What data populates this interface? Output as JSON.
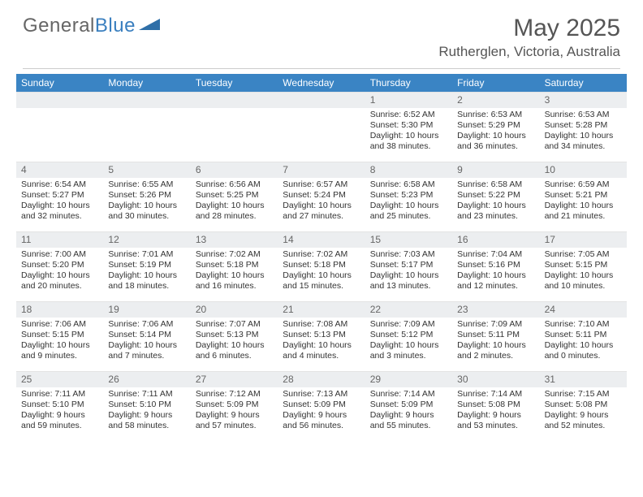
{
  "colors": {
    "header_bg": "#3a84c4",
    "header_text": "#ffffff",
    "daynum_bg": "#eceef0",
    "daynum_text": "#666666",
    "body_text": "#333333",
    "page_bg": "#ffffff",
    "rule": "#cccccc",
    "logo_gray": "#666666",
    "logo_blue": "#3a7fbf",
    "triangle": "#2f6fa8"
  },
  "typography": {
    "month_fontsize": 30,
    "location_fontsize": 17,
    "dayhdr_fontsize": 12,
    "cell_fontsize": 10.5,
    "logo_fontsize": 24
  },
  "logo": {
    "part1": "General",
    "part2": "Blue"
  },
  "title": {
    "month": "May 2025",
    "location": "Rutherglen, Victoria, Australia"
  },
  "day_headers": [
    "Sunday",
    "Monday",
    "Tuesday",
    "Wednesday",
    "Thursday",
    "Friday",
    "Saturday"
  ],
  "labels": {
    "sunrise": "Sunrise:",
    "sunset": "Sunset:",
    "daylight": "Daylight:"
  },
  "grid": {
    "leading_blanks": 4,
    "days": [
      {
        "n": 1,
        "sunrise": "6:52 AM",
        "sunset": "5:30 PM",
        "daylight": "10 hours and 38 minutes."
      },
      {
        "n": 2,
        "sunrise": "6:53 AM",
        "sunset": "5:29 PM",
        "daylight": "10 hours and 36 minutes."
      },
      {
        "n": 3,
        "sunrise": "6:53 AM",
        "sunset": "5:28 PM",
        "daylight": "10 hours and 34 minutes."
      },
      {
        "n": 4,
        "sunrise": "6:54 AM",
        "sunset": "5:27 PM",
        "daylight": "10 hours and 32 minutes."
      },
      {
        "n": 5,
        "sunrise": "6:55 AM",
        "sunset": "5:26 PM",
        "daylight": "10 hours and 30 minutes."
      },
      {
        "n": 6,
        "sunrise": "6:56 AM",
        "sunset": "5:25 PM",
        "daylight": "10 hours and 28 minutes."
      },
      {
        "n": 7,
        "sunrise": "6:57 AM",
        "sunset": "5:24 PM",
        "daylight": "10 hours and 27 minutes."
      },
      {
        "n": 8,
        "sunrise": "6:58 AM",
        "sunset": "5:23 PM",
        "daylight": "10 hours and 25 minutes."
      },
      {
        "n": 9,
        "sunrise": "6:58 AM",
        "sunset": "5:22 PM",
        "daylight": "10 hours and 23 minutes."
      },
      {
        "n": 10,
        "sunrise": "6:59 AM",
        "sunset": "5:21 PM",
        "daylight": "10 hours and 21 minutes."
      },
      {
        "n": 11,
        "sunrise": "7:00 AM",
        "sunset": "5:20 PM",
        "daylight": "10 hours and 20 minutes."
      },
      {
        "n": 12,
        "sunrise": "7:01 AM",
        "sunset": "5:19 PM",
        "daylight": "10 hours and 18 minutes."
      },
      {
        "n": 13,
        "sunrise": "7:02 AM",
        "sunset": "5:18 PM",
        "daylight": "10 hours and 16 minutes."
      },
      {
        "n": 14,
        "sunrise": "7:02 AM",
        "sunset": "5:18 PM",
        "daylight": "10 hours and 15 minutes."
      },
      {
        "n": 15,
        "sunrise": "7:03 AM",
        "sunset": "5:17 PM",
        "daylight": "10 hours and 13 minutes."
      },
      {
        "n": 16,
        "sunrise": "7:04 AM",
        "sunset": "5:16 PM",
        "daylight": "10 hours and 12 minutes."
      },
      {
        "n": 17,
        "sunrise": "7:05 AM",
        "sunset": "5:15 PM",
        "daylight": "10 hours and 10 minutes."
      },
      {
        "n": 18,
        "sunrise": "7:06 AM",
        "sunset": "5:15 PM",
        "daylight": "10 hours and 9 minutes."
      },
      {
        "n": 19,
        "sunrise": "7:06 AM",
        "sunset": "5:14 PM",
        "daylight": "10 hours and 7 minutes."
      },
      {
        "n": 20,
        "sunrise": "7:07 AM",
        "sunset": "5:13 PM",
        "daylight": "10 hours and 6 minutes."
      },
      {
        "n": 21,
        "sunrise": "7:08 AM",
        "sunset": "5:13 PM",
        "daylight": "10 hours and 4 minutes."
      },
      {
        "n": 22,
        "sunrise": "7:09 AM",
        "sunset": "5:12 PM",
        "daylight": "10 hours and 3 minutes."
      },
      {
        "n": 23,
        "sunrise": "7:09 AM",
        "sunset": "5:11 PM",
        "daylight": "10 hours and 2 minutes."
      },
      {
        "n": 24,
        "sunrise": "7:10 AM",
        "sunset": "5:11 PM",
        "daylight": "10 hours and 0 minutes."
      },
      {
        "n": 25,
        "sunrise": "7:11 AM",
        "sunset": "5:10 PM",
        "daylight": "9 hours and 59 minutes."
      },
      {
        "n": 26,
        "sunrise": "7:11 AM",
        "sunset": "5:10 PM",
        "daylight": "9 hours and 58 minutes."
      },
      {
        "n": 27,
        "sunrise": "7:12 AM",
        "sunset": "5:09 PM",
        "daylight": "9 hours and 57 minutes."
      },
      {
        "n": 28,
        "sunrise": "7:13 AM",
        "sunset": "5:09 PM",
        "daylight": "9 hours and 56 minutes."
      },
      {
        "n": 29,
        "sunrise": "7:14 AM",
        "sunset": "5:09 PM",
        "daylight": "9 hours and 55 minutes."
      },
      {
        "n": 30,
        "sunrise": "7:14 AM",
        "sunset": "5:08 PM",
        "daylight": "9 hours and 53 minutes."
      },
      {
        "n": 31,
        "sunrise": "7:15 AM",
        "sunset": "5:08 PM",
        "daylight": "9 hours and 52 minutes."
      }
    ]
  }
}
